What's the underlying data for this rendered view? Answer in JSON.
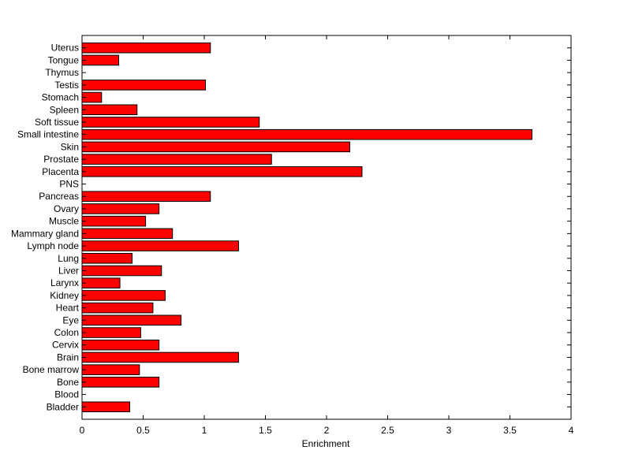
{
  "chart_data": {
    "type": "bar",
    "orientation": "horizontal",
    "title": "",
    "xlabel": "Enrichment",
    "ylabel": "",
    "xlim": [
      0,
      4
    ],
    "xticks": [
      "0",
      "0.5",
      "1",
      "1.5",
      "2",
      "2.5",
      "3",
      "3.5",
      "4"
    ],
    "grid": false,
    "legend": "none",
    "bar_color": "#ff0000",
    "categories": [
      "Bladder",
      "Blood",
      "Bone",
      "Bone marrow",
      "Brain",
      "Cervix",
      "Colon",
      "Eye",
      "Heart",
      "Kidney",
      "Larynx",
      "Liver",
      "Lung",
      "Lymph node",
      "Mammary gland",
      "Muscle",
      "Ovary",
      "Pancreas",
      "PNS",
      "Placenta",
      "Prostate",
      "Skin",
      "Small intestine",
      "Soft tissue",
      "Spleen",
      "Stomach",
      "Testis",
      "Thymus",
      "Tongue",
      "Uterus"
    ],
    "values": [
      0.39,
      0,
      0.63,
      0.47,
      1.28,
      0.63,
      0.48,
      0.81,
      0.58,
      0.68,
      0.31,
      0.65,
      0.41,
      1.28,
      0.74,
      0.52,
      0.63,
      1.05,
      0,
      2.29,
      1.55,
      2.19,
      3.68,
      1.45,
      0.45,
      0.16,
      1.01,
      0,
      0.3,
      1.05
    ]
  }
}
